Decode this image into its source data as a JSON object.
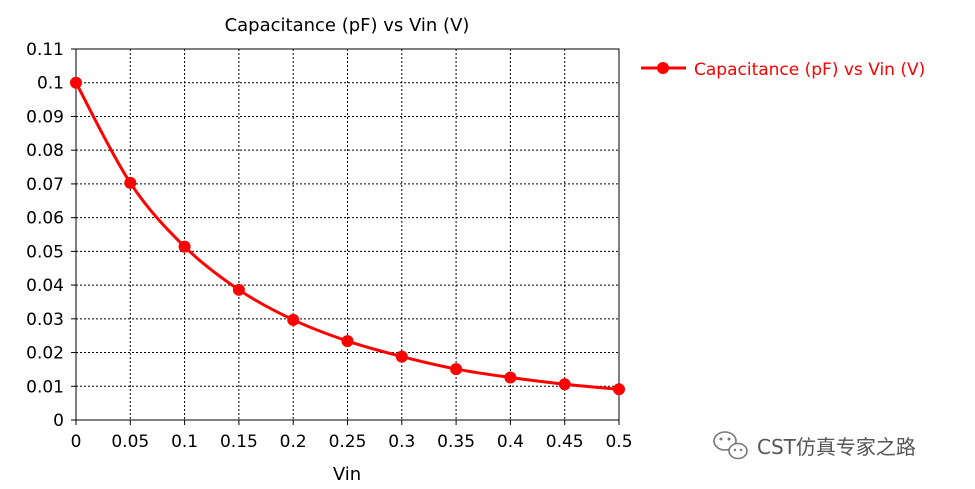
{
  "chart_data": {
    "type": "line",
    "title": "Capacitance (pF) vs Vin (V)",
    "xlabel": "Vin",
    "ylabel": "",
    "xlim": [
      0,
      0.5
    ],
    "ylim": [
      0,
      0.11
    ],
    "x_ticks": [
      "0",
      "0.05",
      "0.1",
      "0.15",
      "0.2",
      "0.25",
      "0.3",
      "0.35",
      "0.4",
      "0.45",
      "0.5"
    ],
    "y_ticks": [
      "0",
      "0.01",
      "0.02",
      "0.03",
      "0.04",
      "0.05",
      "0.06",
      "0.07",
      "0.08",
      "0.09",
      "0.1",
      "0.11"
    ],
    "grid": true,
    "legend_position": "right",
    "series": [
      {
        "name": "Capacitance (pF) vs Vin (V)",
        "color": "#ff0000",
        "x": [
          0,
          0.05,
          0.1,
          0.15,
          0.2,
          0.25,
          0.3,
          0.35,
          0.4,
          0.45,
          0.5
        ],
        "y": [
          0.1,
          0.0703,
          0.0514,
          0.0386,
          0.0297,
          0.0234,
          0.0188,
          0.0151,
          0.0126,
          0.0106,
          0.0091
        ]
      }
    ]
  },
  "watermark": {
    "icon": "wechat-icon",
    "text": "CST仿真专家之路"
  }
}
